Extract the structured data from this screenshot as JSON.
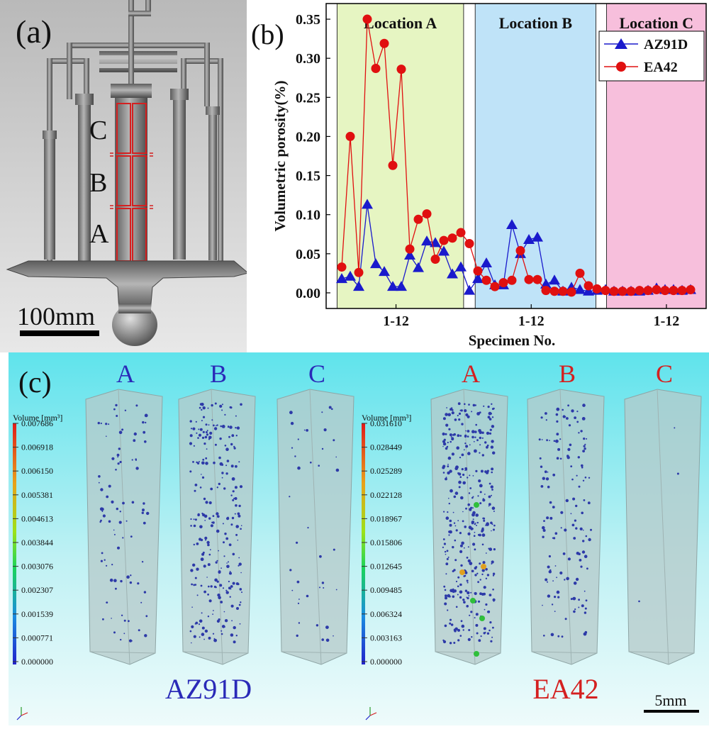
{
  "panel_a": {
    "label": "(a)",
    "location_labels": [
      "C",
      "B",
      "A"
    ],
    "scale_bar": "100mm"
  },
  "panel_b": {
    "label": "(b)"
  },
  "chart_data": {
    "type": "line",
    "title": "",
    "xlabel": "Specimen No.",
    "ylabel": "Volumetric porosity(%)",
    "ylim": [
      -0.02,
      0.37
    ],
    "yticks": [
      "0.00",
      "0.05",
      "0.10",
      "0.15",
      "0.20",
      "0.25",
      "0.30",
      "0.35"
    ],
    "ytick_values": [
      0.0,
      0.05,
      0.1,
      0.15,
      0.2,
      0.25,
      0.3,
      0.35
    ],
    "xlim": [
      0,
      37
    ],
    "x_tick_labels": [
      "1-12",
      "1-12",
      "1-12"
    ],
    "x_tick_positions": [
      6.5,
      20.5,
      34.5
    ],
    "regions": [
      {
        "label": "Location A",
        "from": 0.4,
        "to": 13.5,
        "color": "#e6f5c2"
      },
      {
        "label": "Location B",
        "from": 14.7,
        "to": 27.2,
        "color": "#bfe3f8"
      },
      {
        "label": "Location C",
        "from": 28.3,
        "to": 41.0,
        "color": "#f7bfdc"
      }
    ],
    "series": [
      {
        "name": "AZ91D",
        "color": "#1a1acc",
        "marker": "triangle",
        "x": [
          1,
          2,
          3,
          4,
          5,
          6,
          7,
          8,
          9,
          10,
          11,
          12,
          13,
          14,
          15,
          16,
          17,
          18,
          19,
          20,
          21,
          22,
          23,
          24,
          25,
          26,
          27,
          28,
          29,
          30,
          31,
          32,
          33,
          34,
          35,
          36,
          37,
          38,
          39,
          40,
          41,
          42
        ],
        "y": [
          0.018,
          0.021,
          0.008,
          0.113,
          0.037,
          0.027,
          0.008,
          0.008,
          0.048,
          0.032,
          0.066,
          0.064,
          0.053,
          0.024,
          0.033,
          0.003,
          0.018,
          0.038,
          0.01,
          0.01,
          0.087,
          0.05,
          0.068,
          0.071,
          0.011,
          0.016,
          0.002,
          0.007,
          0.004,
          0.002,
          0.003,
          0.004,
          0.002,
          0.002,
          0.002,
          0.002,
          0.003,
          0.006,
          0.004,
          0.004,
          0.003,
          0.004
        ]
      },
      {
        "name": "EA42",
        "color": "#e01010",
        "marker": "circle",
        "x": [
          1,
          2,
          3,
          4,
          5,
          6,
          7,
          8,
          9,
          10,
          11,
          12,
          13,
          14,
          15,
          16,
          17,
          18,
          19,
          20,
          21,
          22,
          23,
          24,
          25,
          26,
          27,
          28,
          29,
          30,
          31,
          32,
          33,
          34,
          35,
          36,
          37,
          38,
          39,
          40,
          41,
          42
        ],
        "y": [
          0.033,
          0.2,
          0.026,
          0.35,
          0.287,
          0.319,
          0.163,
          0.286,
          0.056,
          0.094,
          0.101,
          0.043,
          0.067,
          0.07,
          0.077,
          0.063,
          0.028,
          0.016,
          0.008,
          0.013,
          0.016,
          0.054,
          0.017,
          0.017,
          0.003,
          0.002,
          0.002,
          0.001,
          0.025,
          0.009,
          0.005,
          0.003,
          0.002,
          0.002,
          0.002,
          0.003,
          0.003,
          0.004,
          0.003,
          0.003,
          0.003,
          0.004
        ]
      }
    ]
  },
  "panel_c": {
    "label": "(c)",
    "az91d": {
      "title": "AZ91D",
      "columns": [
        "A",
        "B",
        "C"
      ],
      "colorbar_title": "Volume [mm³]",
      "colorbar_values": [
        "0.007686",
        "0.006918",
        "0.006150",
        "0.005381",
        "0.004613",
        "0.003844",
        "0.003076",
        "0.002307",
        "0.001539",
        "0.000771",
        "0.000000"
      ]
    },
    "ea42": {
      "title": "EA42",
      "columns": [
        "A",
        "B",
        "C"
      ],
      "colorbar_title": "Volume [mm³]",
      "colorbar_values": [
        "0.031610",
        "0.028449",
        "0.025289",
        "0.022128",
        "0.018967",
        "0.015806",
        "0.012645",
        "0.009485",
        "0.006324",
        "0.003163",
        "0.000000"
      ]
    },
    "scale_bar": "5mm"
  }
}
